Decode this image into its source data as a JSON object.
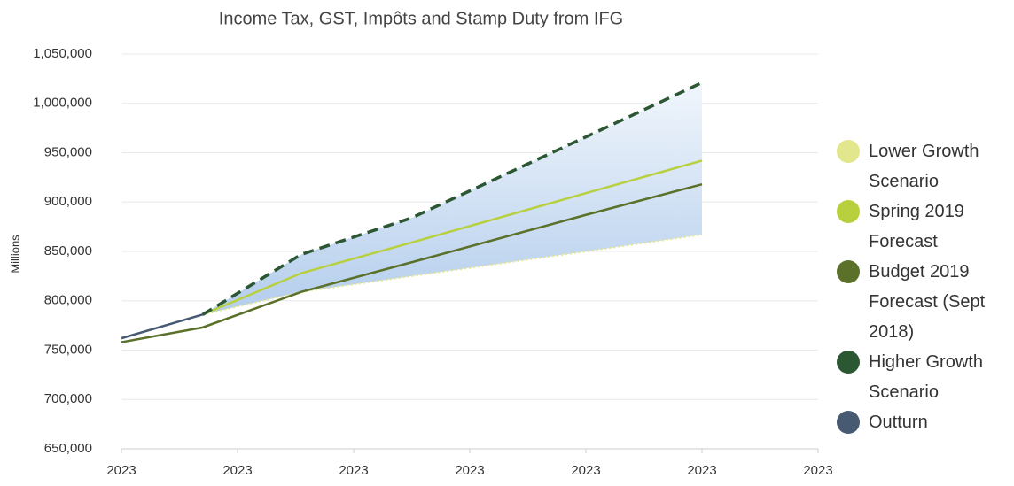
{
  "chart_data": {
    "type": "line",
    "title": "Income Tax, GST, Impôts and Stamp Duty from IFG",
    "y_label": "Millions",
    "x": [
      0,
      0.7,
      1.55,
      2.5,
      4,
      5
    ],
    "xlim": [
      0,
      6
    ],
    "xticks": [
      {
        "value": 0,
        "label": "2023"
      },
      {
        "value": 1,
        "label": "2023"
      },
      {
        "value": 2,
        "label": "2023"
      },
      {
        "value": 3,
        "label": "2023"
      },
      {
        "value": 4,
        "label": "2023"
      },
      {
        "value": 5,
        "label": "2023"
      },
      {
        "value": 6,
        "label": "2023"
      }
    ],
    "ylim": [
      650000,
      1050000
    ],
    "yticks": [
      {
        "value": 650000,
        "label": "650,000"
      },
      {
        "value": 700000,
        "label": "700,000"
      },
      {
        "value": 750000,
        "label": "750,000"
      },
      {
        "value": 800000,
        "label": "800,000"
      },
      {
        "value": 850000,
        "label": "850,000"
      },
      {
        "value": 900000,
        "label": "900,000"
      },
      {
        "value": 950000,
        "label": "950,000"
      },
      {
        "value": 1000000,
        "label": "1,000,000"
      },
      {
        "value": 1050000,
        "label": "1,050,000"
      }
    ],
    "grid": true,
    "legend": "right",
    "series": [
      {
        "name": "Lower Growth Scenario",
        "color": "#e2e68c",
        "style": "dotted",
        "values": [
          null,
          786000,
          809000,
          825000,
          850000,
          867000
        ]
      },
      {
        "name": "Spring 2019 Forecast",
        "color": "#b8d03e",
        "style": "solid",
        "values": [
          null,
          786000,
          828000,
          859000,
          909000,
          942000
        ]
      },
      {
        "name": "Budget 2019 Forecast (Sept 2018)",
        "color": "#5b7129",
        "style": "solid",
        "values": [
          758000,
          773000,
          809000,
          839000,
          887000,
          918000
        ]
      },
      {
        "name": "Higher Growth Scenario",
        "color": "#2c5733",
        "style": "dashed",
        "values": [
          null,
          786000,
          847000,
          884000,
          966000,
          1021000
        ]
      },
      {
        "name": "Outturn",
        "color": "#475a72",
        "style": "solid",
        "values": [
          762000,
          786000,
          null,
          null,
          null,
          null
        ]
      }
    ]
  }
}
